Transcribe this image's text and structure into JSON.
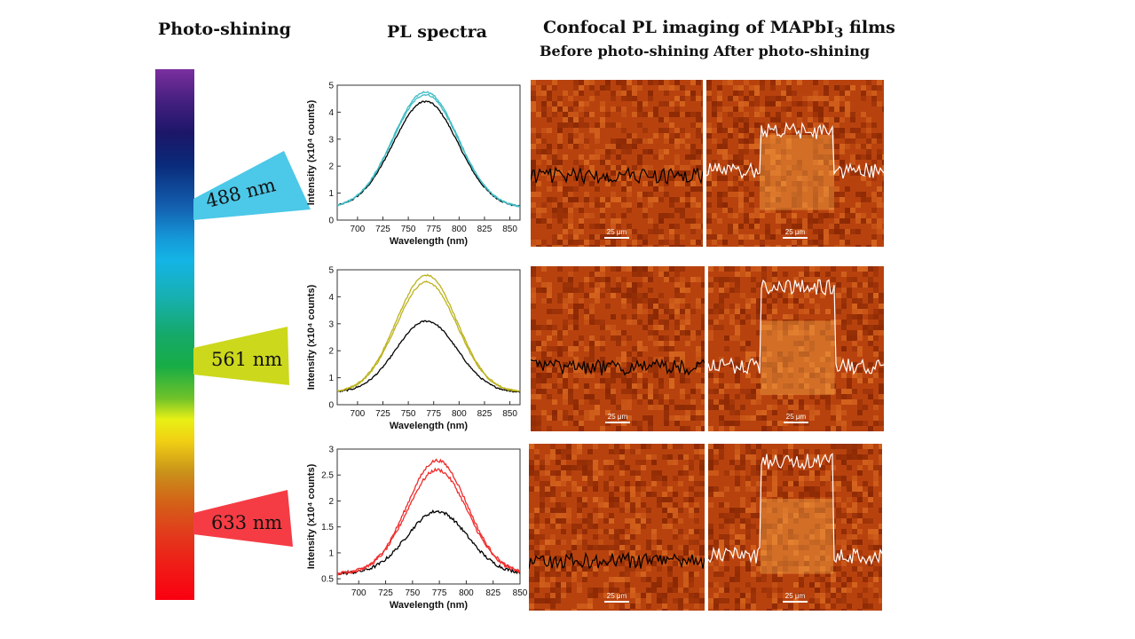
{
  "headers": {
    "photo_shining": "Photo-shining",
    "pl_spectra": "PL spectra",
    "confocal_prefix": "Confocal PL imaging of MAPbI",
    "confocal_sub": "3",
    "confocal_suffix": " films",
    "before": "Before photo-shining",
    "after": "After photo-shining"
  },
  "colors": {
    "beam_488": "#4cc8e8",
    "beam_561": "#ccd81c",
    "beam_633": "#f53c44",
    "curve_488": "#3fbcc4",
    "curve_561": "#bcb21c",
    "curve_633": "#f02a2a",
    "curve_initial": "#000000",
    "panel_base": "#b8420e"
  },
  "beams": [
    {
      "label": "488 nm",
      "color_key": "beam_488"
    },
    {
      "label": "561 nm",
      "color_key": "beam_561"
    },
    {
      "label": "633 nm",
      "color_key": "beam_633"
    }
  ],
  "chart_data": [
    {
      "type": "line",
      "xlabel": "Wavelength (nm)",
      "ylabel": "Intensity (x10⁴ counts)",
      "xlim": [
        680,
        860
      ],
      "ylim": [
        0,
        5
      ],
      "xticks": [
        700,
        725,
        750,
        775,
        800,
        825,
        850
      ],
      "yticks": [
        0,
        1,
        2,
        3,
        4,
        5
      ],
      "peak": 767,
      "width": 32,
      "baseline": 0.45,
      "series": [
        {
          "color_key": "curve_initial",
          "amplitude": 3.95
        },
        {
          "color_key": "curve_488",
          "amplitude": 4.2
        },
        {
          "color_key": "curve_488",
          "amplitude": 4.3
        }
      ]
    },
    {
      "type": "line",
      "xlabel": "Wavelength (nm)",
      "ylabel": "Intensity (x10⁴ counts)",
      "xlim": [
        680,
        860
      ],
      "ylim": [
        0,
        5
      ],
      "xticks": [
        700,
        725,
        750,
        775,
        800,
        825,
        850
      ],
      "yticks": [
        0,
        1,
        2,
        3,
        4,
        5
      ],
      "peak": 768,
      "width": 30,
      "baseline": 0.45,
      "series": [
        {
          "color_key": "curve_initial",
          "amplitude": 2.65
        },
        {
          "color_key": "curve_561",
          "amplitude": 4.1
        },
        {
          "color_key": "curve_561",
          "amplitude": 4.35
        }
      ]
    },
    {
      "type": "line",
      "xlabel": "Wavelength (nm)",
      "ylabel": "Intensity (x10⁴ counts)",
      "xlim": [
        680,
        850
      ],
      "ylim": [
        0.4,
        3.0
      ],
      "xticks": [
        700,
        725,
        750,
        775,
        800,
        825,
        850
      ],
      "yticks": [
        0.5,
        1.0,
        1.5,
        2.0,
        2.5,
        3.0
      ],
      "peak": 773,
      "width": 28,
      "baseline": 0.6,
      "series": [
        {
          "color_key": "curve_initial",
          "amplitude": 1.2
        },
        {
          "color_key": "curve_633",
          "amplitude": 2.0
        },
        {
          "color_key": "curve_633",
          "amplitude": 2.18
        }
      ]
    }
  ],
  "scale_bar_label": "25 μm"
}
